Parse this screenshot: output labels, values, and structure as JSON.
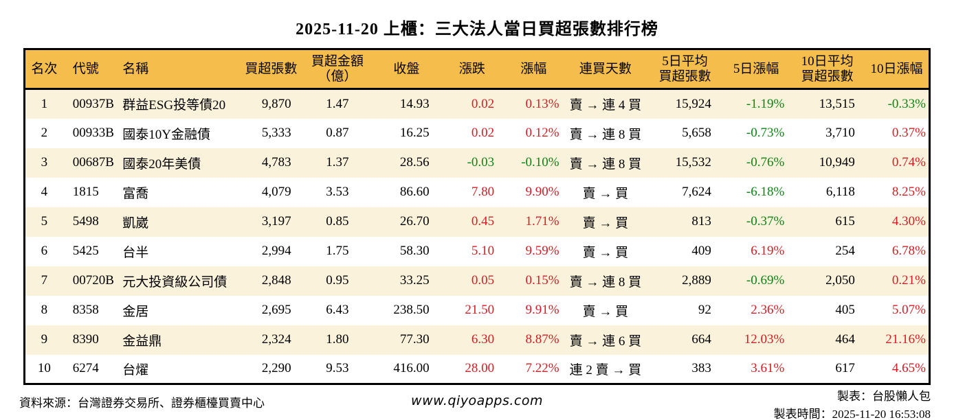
{
  "title": "2025-11-20 上櫃：三大法人當日買超張數排行榜",
  "colors": {
    "header_bg": "#f5be4c",
    "row_alt_bg": "#faf2da",
    "up_red": "#d41c24",
    "down_green": "#0e8416",
    "border": "#000000"
  },
  "chart_data": {
    "type": "table",
    "title": "2025-11-20 上櫃：三大法人當日買超張數排行榜",
    "columns": [
      {
        "key": "rank",
        "label": "名次"
      },
      {
        "key": "code",
        "label": "代號"
      },
      {
        "key": "name",
        "label": "名稱"
      },
      {
        "key": "net_buy",
        "label": "買超張數"
      },
      {
        "key": "amount",
        "label": "買超金額\n（億）"
      },
      {
        "key": "close",
        "label": "收盤"
      },
      {
        "key": "change",
        "label": "漲跌"
      },
      {
        "key": "change_pct",
        "label": "漲幅"
      },
      {
        "key": "streak",
        "label": "連買天數"
      },
      {
        "key": "avg5",
        "label": "5日平均\n買超張數"
      },
      {
        "key": "pct5",
        "label": "5日漲幅"
      },
      {
        "key": "avg10",
        "label": "10日平均\n買超張數"
      },
      {
        "key": "pct10",
        "label": "10日漲幅"
      }
    ],
    "rows": [
      {
        "rank": "1",
        "code": "00937B",
        "name": "群益ESG投等債20",
        "net_buy": "9,870",
        "amount": "1.47",
        "close": "14.93",
        "change": "0.02",
        "change_pct": "0.13%",
        "streak": "賣 → 連 4 買",
        "avg5": "15,924",
        "pct5": "-1.19%",
        "avg10": "13,515",
        "pct10": "-0.33%"
      },
      {
        "rank": "2",
        "code": "00933B",
        "name": "國泰10Y金融債",
        "net_buy": "5,333",
        "amount": "0.87",
        "close": "16.25",
        "change": "0.02",
        "change_pct": "0.12%",
        "streak": "賣 → 連 8 買",
        "avg5": "5,658",
        "pct5": "-0.73%",
        "avg10": "3,710",
        "pct10": "0.37%"
      },
      {
        "rank": "3",
        "code": "00687B",
        "name": "國泰20年美債",
        "net_buy": "4,783",
        "amount": "1.37",
        "close": "28.56",
        "change": "-0.03",
        "change_pct": "-0.10%",
        "streak": "賣 → 連 8 買",
        "avg5": "15,532",
        "pct5": "-0.76%",
        "avg10": "10,949",
        "pct10": "0.74%"
      },
      {
        "rank": "4",
        "code": "1815",
        "name": "富喬",
        "net_buy": "4,079",
        "amount": "3.53",
        "close": "86.60",
        "change": "7.80",
        "change_pct": "9.90%",
        "streak": "賣 → 買",
        "avg5": "7,624",
        "pct5": "-6.18%",
        "avg10": "6,118",
        "pct10": "8.25%"
      },
      {
        "rank": "5",
        "code": "5498",
        "name": "凱崴",
        "net_buy": "3,197",
        "amount": "0.85",
        "close": "26.70",
        "change": "0.45",
        "change_pct": "1.71%",
        "streak": "賣 → 買",
        "avg5": "813",
        "pct5": "-0.37%",
        "avg10": "615",
        "pct10": "4.30%"
      },
      {
        "rank": "6",
        "code": "5425",
        "name": "台半",
        "net_buy": "2,994",
        "amount": "1.75",
        "close": "58.30",
        "change": "5.10",
        "change_pct": "9.59%",
        "streak": "賣 → 買",
        "avg5": "409",
        "pct5": "6.19%",
        "avg10": "254",
        "pct10": "6.78%"
      },
      {
        "rank": "7",
        "code": "00720B",
        "name": "元大投資級公司債",
        "net_buy": "2,848",
        "amount": "0.95",
        "close": "33.25",
        "change": "0.05",
        "change_pct": "0.15%",
        "streak": "賣 → 連 8 買",
        "avg5": "2,889",
        "pct5": "-0.69%",
        "avg10": "2,050",
        "pct10": "0.21%"
      },
      {
        "rank": "8",
        "code": "8358",
        "name": "金居",
        "net_buy": "2,695",
        "amount": "6.43",
        "close": "238.50",
        "change": "21.50",
        "change_pct": "9.91%",
        "streak": "賣 → 買",
        "avg5": "92",
        "pct5": "2.36%",
        "avg10": "405",
        "pct10": "5.07%"
      },
      {
        "rank": "9",
        "code": "8390",
        "name": "金益鼎",
        "net_buy": "2,324",
        "amount": "1.80",
        "close": "77.30",
        "change": "6.30",
        "change_pct": "8.87%",
        "streak": "賣 → 連 6 買",
        "avg5": "664",
        "pct5": "12.03%",
        "avg10": "464",
        "pct10": "21.16%"
      },
      {
        "rank": "10",
        "code": "6274",
        "name": "台燿",
        "net_buy": "2,290",
        "amount": "9.53",
        "close": "416.00",
        "change": "28.00",
        "change_pct": "7.22%",
        "streak": "連 2 賣 → 買",
        "avg5": "383",
        "pct5": "3.61%",
        "avg10": "617",
        "pct10": "4.65%"
      }
    ],
    "color_rule": "positive values red (up), negative values green (down) for 漲跌/漲幅/5日漲幅/10日漲幅"
  },
  "footer": {
    "source": "資料來源：台灣證券交易所、證券櫃檯買賣中心",
    "site": "www.qiyoapps.com",
    "maker": "製表：台股懶人包",
    "timestamp": "製表時間：2025-11-20 16:53:08"
  }
}
